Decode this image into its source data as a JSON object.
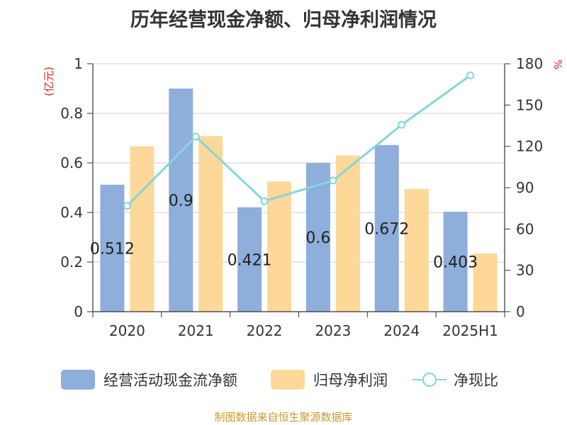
{
  "title": "历年经营现金净额、归母净利润情况",
  "source": "制图数据来自恒生聚源数据库",
  "chart_data": {
    "type": "bar+line",
    "categories": [
      "2020",
      "2021",
      "2022",
      "2023",
      "2024",
      "2025H1"
    ],
    "series": [
      {
        "name": "经营活动现金流净额",
        "type": "bar",
        "axis": "left",
        "color": "#8eaedb",
        "values": [
          0.512,
          0.9,
          0.421,
          0.6,
          0.672,
          0.403
        ],
        "labels": [
          "0.512",
          "0.9",
          "0.421",
          "0.6",
          "0.672",
          "0.403"
        ]
      },
      {
        "name": "归母净利润",
        "type": "bar",
        "axis": "left",
        "color": "#fdd898",
        "values": [
          0.667,
          0.708,
          0.525,
          0.63,
          0.495,
          0.235
        ]
      },
      {
        "name": "净现比",
        "type": "line",
        "axis": "right",
        "color": "#86d6d6",
        "values": [
          76.8,
          127.1,
          80.2,
          95.2,
          135.7,
          171.5
        ]
      }
    ],
    "left_axis": {
      "unit": "(亿元)",
      "min": 0,
      "max": 1,
      "ticks": [
        "0",
        "0.2",
        "0.4",
        "0.6",
        "0.8",
        "1"
      ]
    },
    "right_axis": {
      "unit": "%",
      "min": 0,
      "max": 180,
      "ticks": [
        "0",
        "30",
        "60",
        "90",
        "120",
        "150",
        "180"
      ]
    },
    "grid": true,
    "legend_position": "bottom"
  }
}
